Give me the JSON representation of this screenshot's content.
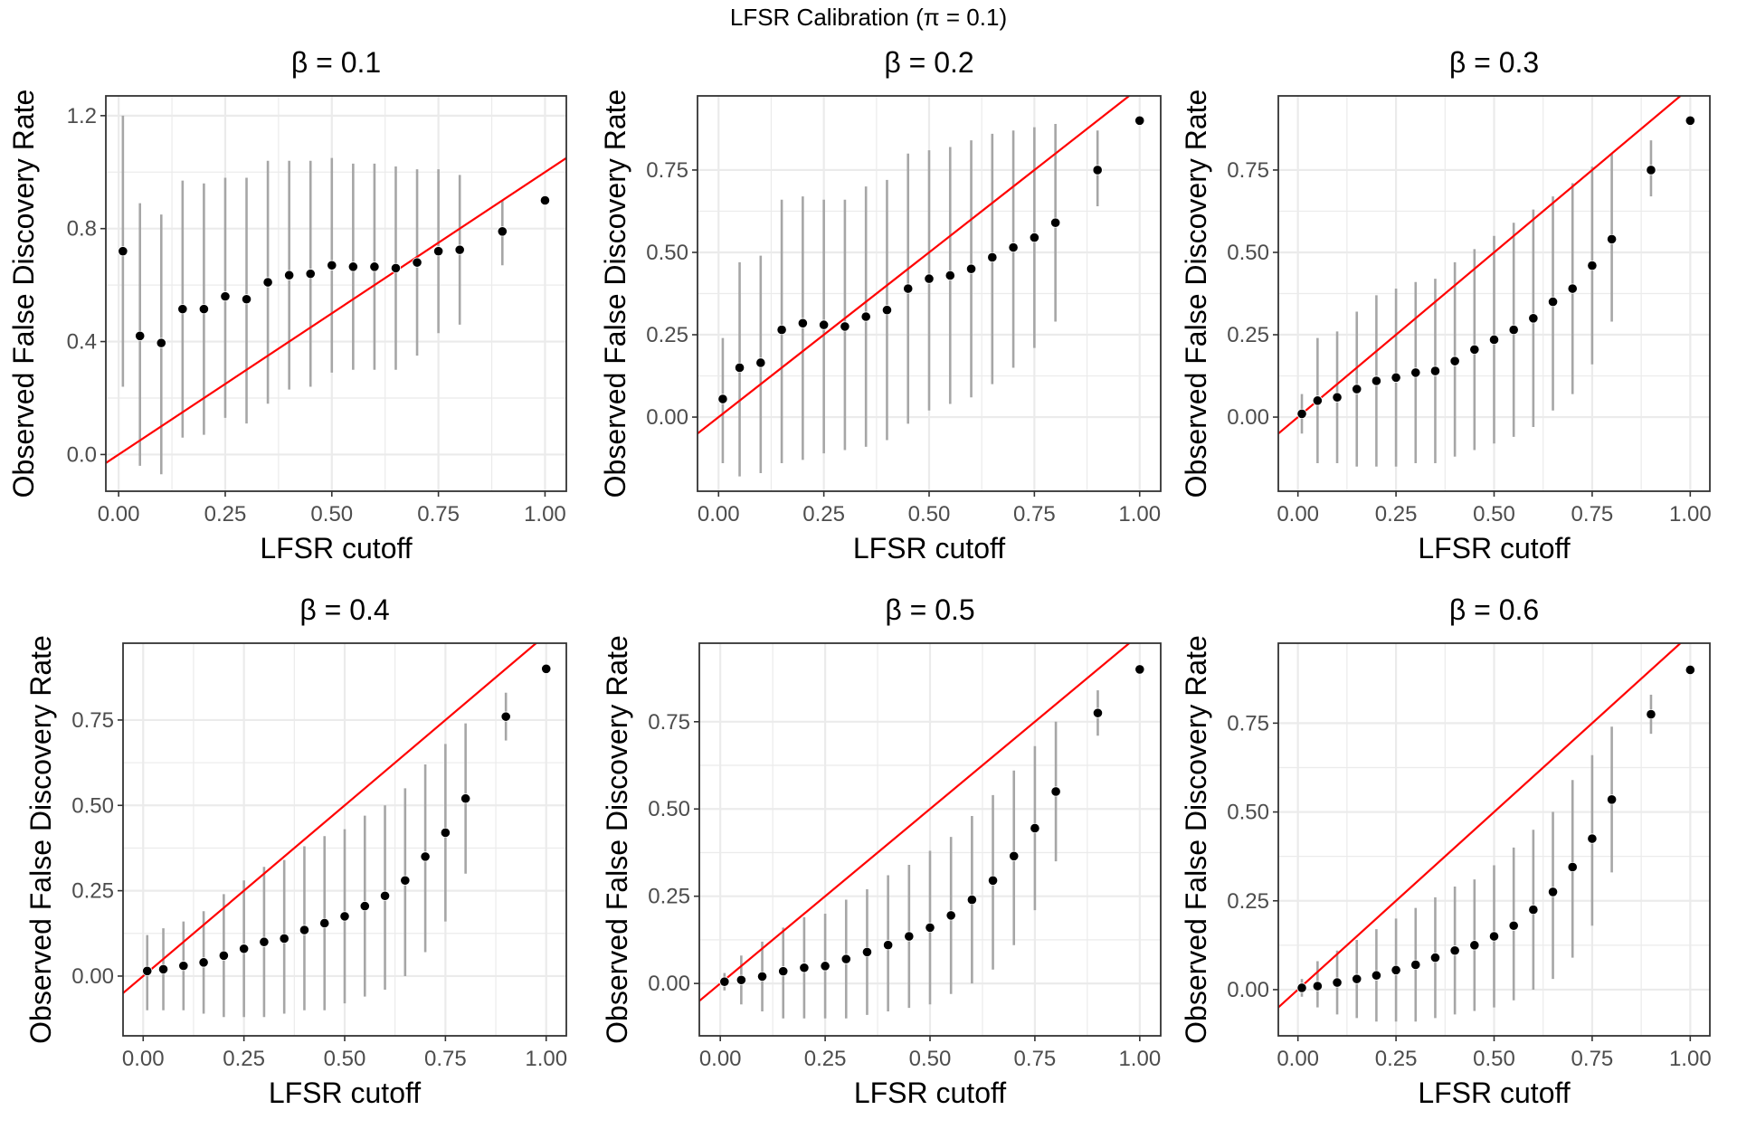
{
  "figure_title": "LFSR Calibration (π = 0.1)",
  "colors": {
    "reference_line": "#ff0000",
    "error_bar": "#a6a6a6",
    "point": "#000000",
    "grid": "#ebebeb",
    "panel_border": "#333333",
    "tick_text": "#4d4d4d"
  },
  "chart_data": [
    {
      "type": "scatter",
      "title": "β = 0.1",
      "xlabel": "LFSR cutoff",
      "ylabel": "Observed False Discovery Rate",
      "xlim": [
        -0.03,
        1.05
      ],
      "ylim": [
        -0.13,
        1.27
      ],
      "xticks": [
        0,
        0.25,
        0.5,
        0.75,
        1
      ],
      "xtick_labels": [
        "0.00",
        "0.25",
        "0.50",
        "0.75",
        "1.00"
      ],
      "yticks": [
        0,
        0.4,
        0.8,
        1.2
      ],
      "ytick_labels": [
        "0.0",
        "0.4",
        "0.8",
        "1.2"
      ],
      "grid": true,
      "reference_line": "y = x",
      "x": [
        0.01,
        0.05,
        0.1,
        0.15,
        0.2,
        0.25,
        0.3,
        0.35,
        0.4,
        0.45,
        0.5,
        0.55,
        0.6,
        0.65,
        0.7,
        0.75,
        0.8,
        0.9,
        1.0
      ],
      "y": [
        0.72,
        0.42,
        0.395,
        0.515,
        0.515,
        0.56,
        0.55,
        0.61,
        0.635,
        0.64,
        0.67,
        0.665,
        0.665,
        0.66,
        0.68,
        0.72,
        0.725,
        0.79,
        0.9
      ],
      "lower": [
        0.24,
        -0.04,
        -0.07,
        0.06,
        0.07,
        0.13,
        0.11,
        0.18,
        0.23,
        0.24,
        0.29,
        0.3,
        0.3,
        0.3,
        0.35,
        0.43,
        0.46,
        0.67,
        null
      ],
      "upper": [
        1.2,
        0.89,
        0.85,
        0.97,
        0.96,
        0.98,
        0.98,
        1.04,
        1.04,
        1.04,
        1.05,
        1.03,
        1.03,
        1.02,
        1.01,
        1.01,
        0.99,
        0.9,
        null
      ]
    },
    {
      "type": "scatter",
      "title": "β = 0.2",
      "xlabel": "LFSR cutoff",
      "ylabel": "Observed False Discovery Rate",
      "xlim": [
        -0.05,
        1.05
      ],
      "ylim": [
        -0.225,
        0.975
      ],
      "xticks": [
        0,
        0.25,
        0.5,
        0.75,
        1
      ],
      "xtick_labels": [
        "0.00",
        "0.25",
        "0.50",
        "0.75",
        "1.00"
      ],
      "yticks": [
        0,
        0.25,
        0.5,
        0.75
      ],
      "ytick_labels": [
        "0.00",
        "0.25",
        "0.50",
        "0.75"
      ],
      "grid": true,
      "reference_line": "y = x",
      "x": [
        0.01,
        0.05,
        0.1,
        0.15,
        0.2,
        0.25,
        0.3,
        0.35,
        0.4,
        0.45,
        0.5,
        0.55,
        0.6,
        0.65,
        0.7,
        0.75,
        0.8,
        0.9,
        1.0
      ],
      "y": [
        0.055,
        0.15,
        0.165,
        0.265,
        0.285,
        0.28,
        0.275,
        0.305,
        0.325,
        0.39,
        0.42,
        0.43,
        0.45,
        0.485,
        0.515,
        0.545,
        0.59,
        0.75,
        0.9
      ],
      "lower": [
        -0.14,
        -0.18,
        -0.17,
        -0.14,
        -0.13,
        -0.11,
        -0.1,
        -0.09,
        -0.07,
        -0.02,
        0.02,
        0.04,
        0.06,
        0.1,
        0.15,
        0.21,
        0.29,
        0.64,
        null
      ],
      "upper": [
        0.24,
        0.47,
        0.49,
        0.66,
        0.67,
        0.66,
        0.66,
        0.7,
        0.72,
        0.8,
        0.81,
        0.82,
        0.84,
        0.86,
        0.87,
        0.88,
        0.89,
        0.87,
        null
      ]
    },
    {
      "type": "scatter",
      "title": "β = 0.3",
      "xlabel": "LFSR cutoff",
      "ylabel": "Observed False Discovery Rate",
      "xlim": [
        -0.05,
        1.05
      ],
      "ylim": [
        -0.225,
        0.975
      ],
      "xticks": [
        0,
        0.25,
        0.5,
        0.75,
        1
      ],
      "xtick_labels": [
        "0.00",
        "0.25",
        "0.50",
        "0.75",
        "1.00"
      ],
      "yticks": [
        0,
        0.25,
        0.5,
        0.75
      ],
      "ytick_labels": [
        "0.00",
        "0.25",
        "0.50",
        "0.75"
      ],
      "grid": true,
      "reference_line": "y = x",
      "x": [
        0.01,
        0.05,
        0.1,
        0.15,
        0.2,
        0.25,
        0.3,
        0.35,
        0.4,
        0.45,
        0.5,
        0.55,
        0.6,
        0.65,
        0.7,
        0.75,
        0.8,
        0.9,
        1.0
      ],
      "y": [
        0.01,
        0.05,
        0.06,
        0.085,
        0.11,
        0.12,
        0.135,
        0.14,
        0.17,
        0.205,
        0.235,
        0.265,
        0.3,
        0.35,
        0.39,
        0.46,
        0.54,
        0.75,
        0.9
      ],
      "lower": [
        -0.05,
        -0.14,
        -0.14,
        -0.15,
        -0.15,
        -0.15,
        -0.14,
        -0.14,
        -0.12,
        -0.1,
        -0.08,
        -0.06,
        -0.03,
        0.02,
        0.07,
        0.16,
        0.29,
        0.67,
        null
      ],
      "upper": [
        0.07,
        0.24,
        0.26,
        0.32,
        0.37,
        0.39,
        0.41,
        0.42,
        0.47,
        0.51,
        0.55,
        0.59,
        0.63,
        0.67,
        0.71,
        0.76,
        0.8,
        0.84,
        null
      ]
    },
    {
      "type": "scatter",
      "title": "β = 0.4",
      "xlabel": "LFSR cutoff",
      "ylabel": "Observed False Discovery Rate",
      "xlim": [
        -0.05,
        1.05
      ],
      "ylim": [
        -0.175,
        0.975
      ],
      "xticks": [
        0,
        0.25,
        0.5,
        0.75,
        1
      ],
      "xtick_labels": [
        "0.00",
        "0.25",
        "0.50",
        "0.75",
        "1.00"
      ],
      "yticks": [
        0,
        0.25,
        0.5,
        0.75
      ],
      "ytick_labels": [
        "0.00",
        "0.25",
        "0.50",
        "0.75"
      ],
      "grid": true,
      "reference_line": "y = x",
      "x": [
        0.01,
        0.05,
        0.1,
        0.15,
        0.2,
        0.25,
        0.3,
        0.35,
        0.4,
        0.45,
        0.5,
        0.55,
        0.6,
        0.65,
        0.7,
        0.75,
        0.8,
        0.9,
        1.0
      ],
      "y": [
        0.015,
        0.02,
        0.03,
        0.04,
        0.06,
        0.08,
        0.1,
        0.11,
        0.135,
        0.155,
        0.175,
        0.205,
        0.235,
        0.28,
        0.35,
        0.42,
        0.52,
        0.76,
        0.9
      ],
      "lower": [
        -0.1,
        -0.1,
        -0.1,
        -0.11,
        -0.12,
        -0.12,
        -0.12,
        -0.11,
        -0.1,
        -0.1,
        -0.08,
        -0.06,
        -0.04,
        0.0,
        0.07,
        0.16,
        0.3,
        0.69,
        null
      ],
      "upper": [
        0.12,
        0.14,
        0.16,
        0.19,
        0.24,
        0.28,
        0.32,
        0.34,
        0.38,
        0.41,
        0.43,
        0.47,
        0.5,
        0.55,
        0.62,
        0.68,
        0.74,
        0.83,
        null
      ]
    },
    {
      "type": "scatter",
      "title": "β = 0.5",
      "xlabel": "LFSR cutoff",
      "ylabel": "Observed False Discovery Rate",
      "xlim": [
        -0.05,
        1.05
      ],
      "ylim": [
        -0.15,
        0.975
      ],
      "xticks": [
        0,
        0.25,
        0.5,
        0.75,
        1
      ],
      "xtick_labels": [
        "0.00",
        "0.25",
        "0.50",
        "0.75",
        "1.00"
      ],
      "yticks": [
        0,
        0.25,
        0.5,
        0.75
      ],
      "ytick_labels": [
        "0.00",
        "0.25",
        "0.50",
        "0.75"
      ],
      "grid": true,
      "reference_line": "y = x",
      "x": [
        0.01,
        0.05,
        0.1,
        0.15,
        0.2,
        0.25,
        0.3,
        0.35,
        0.4,
        0.45,
        0.5,
        0.55,
        0.6,
        0.65,
        0.7,
        0.75,
        0.8,
        0.9,
        1.0
      ],
      "y": [
        0.005,
        0.01,
        0.02,
        0.035,
        0.045,
        0.05,
        0.07,
        0.09,
        0.11,
        0.135,
        0.16,
        0.195,
        0.24,
        0.295,
        0.365,
        0.445,
        0.55,
        0.775,
        0.9
      ],
      "lower": [
        -0.02,
        -0.06,
        -0.08,
        -0.1,
        -0.1,
        -0.1,
        -0.1,
        -0.09,
        -0.08,
        -0.07,
        -0.06,
        -0.03,
        0.0,
        0.04,
        0.11,
        0.21,
        0.35,
        0.71,
        null
      ],
      "upper": [
        0.03,
        0.08,
        0.12,
        0.16,
        0.19,
        0.2,
        0.24,
        0.27,
        0.31,
        0.34,
        0.38,
        0.42,
        0.48,
        0.54,
        0.61,
        0.68,
        0.75,
        0.84,
        null
      ]
    },
    {
      "type": "scatter",
      "title": "β = 0.6",
      "xlabel": "LFSR cutoff",
      "ylabel": "Observed False Discovery Rate",
      "xlim": [
        -0.05,
        1.05
      ],
      "ylim": [
        -0.13,
        0.975
      ],
      "xticks": [
        0,
        0.25,
        0.5,
        0.75,
        1
      ],
      "xtick_labels": [
        "0.00",
        "0.25",
        "0.50",
        "0.75",
        "1.00"
      ],
      "yticks": [
        0,
        0.25,
        0.5,
        0.75
      ],
      "ytick_labels": [
        "0.00",
        "0.25",
        "0.50",
        "0.75"
      ],
      "grid": true,
      "reference_line": "y = x",
      "x": [
        0.01,
        0.05,
        0.1,
        0.15,
        0.2,
        0.25,
        0.3,
        0.35,
        0.4,
        0.45,
        0.5,
        0.55,
        0.6,
        0.65,
        0.7,
        0.75,
        0.8,
        0.9,
        1.0
      ],
      "y": [
        0.005,
        0.01,
        0.02,
        0.03,
        0.04,
        0.055,
        0.07,
        0.09,
        0.11,
        0.125,
        0.15,
        0.18,
        0.225,
        0.275,
        0.345,
        0.425,
        0.535,
        0.775,
        0.9
      ],
      "lower": [
        -0.02,
        -0.05,
        -0.07,
        -0.08,
        -0.09,
        -0.09,
        -0.09,
        -0.08,
        -0.07,
        -0.06,
        -0.05,
        -0.03,
        0.0,
        0.03,
        0.09,
        0.18,
        0.33,
        0.72,
        null
      ],
      "upper": [
        0.03,
        0.08,
        0.11,
        0.14,
        0.17,
        0.2,
        0.23,
        0.26,
        0.29,
        0.31,
        0.35,
        0.4,
        0.45,
        0.5,
        0.59,
        0.66,
        0.74,
        0.83,
        null
      ]
    }
  ]
}
